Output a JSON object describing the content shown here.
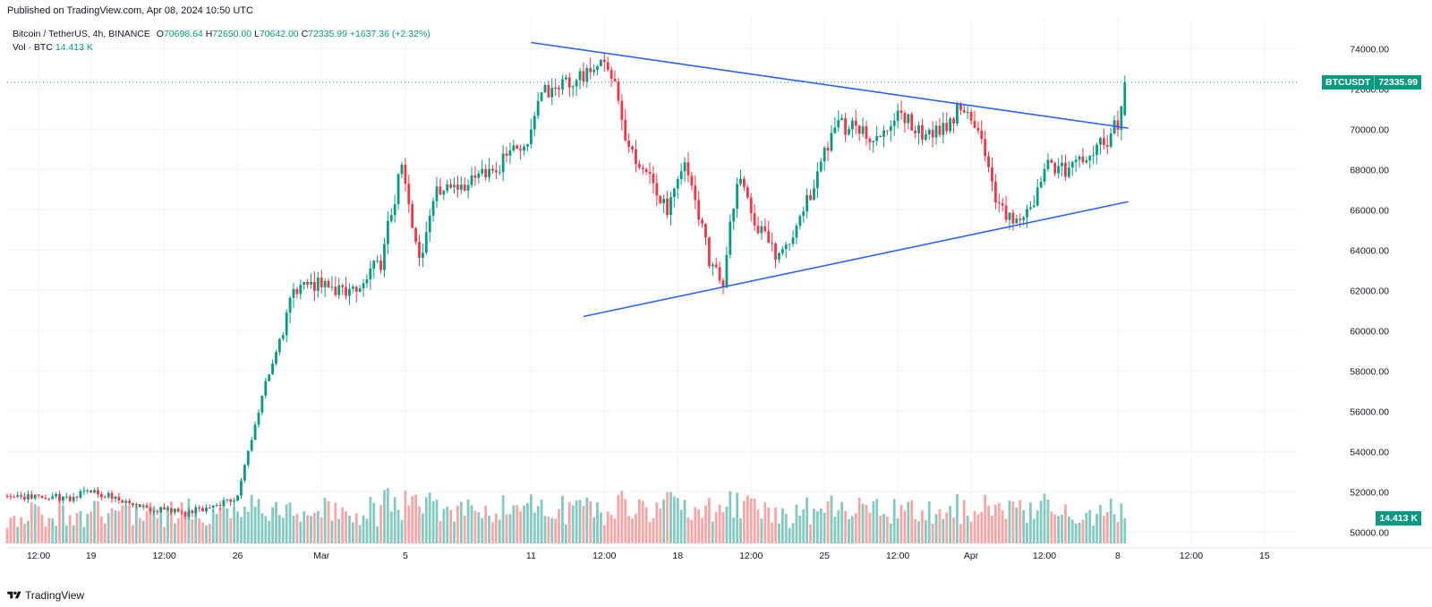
{
  "header": {
    "published": "Published on TradingView.com, Apr 08, 2024 10:50 UTC"
  },
  "legend": {
    "symbol": "Bitcoin / TetherUS, 4h, BINANCE",
    "o_label": "O",
    "o": "70698.64",
    "h_label": "H",
    "h": "72650.00",
    "l_label": "L",
    "l": "70642.00",
    "c_label": "C",
    "c": "72335.99",
    "change": "+1637.36 (+2.32%)",
    "vol_label": "Vol · BTC",
    "vol": "14.413 K"
  },
  "labels": {
    "symbol_tag": "BTCUSDT",
    "last_price": "72335.99",
    "last_volume": "14.413 K"
  },
  "footer": {
    "brand": "TradingView"
  },
  "colors": {
    "up": "#089981",
    "down": "#f23645",
    "up_vol": "#86c9c0",
    "down_vol": "#f7a6a7",
    "trendline": "#2962ff",
    "grid": "#f0f3fa",
    "axis_text": "#131722"
  },
  "chart_data": {
    "type": "candlestick",
    "title": "Bitcoin / TetherUS, 4h, BINANCE",
    "interval": "4h",
    "y_ticks": [
      50000,
      52000,
      54000,
      56000,
      58000,
      60000,
      62000,
      64000,
      66000,
      68000,
      70000,
      72000,
      74000
    ],
    "y_tick_labels": [
      "50000.00",
      "52000.00",
      "54000.00",
      "56000.00",
      "58000.00",
      "60000.00",
      "62000.00",
      "64000.00",
      "66000.00",
      "68000.00",
      "70000.00",
      "72000.00",
      "74000.00"
    ],
    "ylim": [
      49300,
      75300
    ],
    "x_tick_labels": [
      {
        "label": "12:00",
        "date": "2024-02-16T12:00"
      },
      {
        "label": "19",
        "date": "2024-02-19T00:00"
      },
      {
        "label": "12:00",
        "date": "2024-02-22T12:00"
      },
      {
        "label": "26",
        "date": "2024-02-26T00:00"
      },
      {
        "label": "Mar",
        "date": "2024-03-01T00:00"
      },
      {
        "label": "5",
        "date": "2024-03-05T00:00"
      },
      {
        "label": "11",
        "date": "2024-03-11T00:00"
      },
      {
        "label": "12:00",
        "date": "2024-03-14T12:00"
      },
      {
        "label": "18",
        "date": "2024-03-18T00:00"
      },
      {
        "label": "12:00",
        "date": "2024-03-21T12:00"
      },
      {
        "label": "25",
        "date": "2024-03-25T00:00"
      },
      {
        "label": "12:00",
        "date": "2024-03-28T12:00"
      },
      {
        "label": "Apr",
        "date": "2024-04-01T00:00"
      },
      {
        "label": "12:00",
        "date": "2024-04-04T12:00"
      },
      {
        "label": "8",
        "date": "2024-04-08T00:00"
      },
      {
        "label": "12:00",
        "date": "2024-04-11T12:00"
      },
      {
        "label": "15",
        "date": "2024-04-15T00:00"
      }
    ],
    "xlim": [
      "2024-02-15T00:00",
      "2024-04-16T12:00"
    ],
    "key_points": [
      {
        "date": "2024-02-15T00:00",
        "close": 51800
      },
      {
        "date": "2024-02-18T00:00",
        "close": 51700
      },
      {
        "date": "2024-02-19T00:00",
        "close": 52100
      },
      {
        "date": "2024-02-21T00:00",
        "close": 51300
      },
      {
        "date": "2024-02-23T12:00",
        "close": 50900
      },
      {
        "date": "2024-02-26T00:00",
        "close": 51700
      },
      {
        "date": "2024-02-27T04:00",
        "close": 56800
      },
      {
        "date": "2024-02-28T16:00",
        "close": 61900
      },
      {
        "date": "2024-02-29T08:00",
        "close": 62500
      },
      {
        "date": "2024-03-02T08:00",
        "close": 61700
      },
      {
        "date": "2024-03-03T20:00",
        "close": 63400
      },
      {
        "date": "2024-03-04T20:00",
        "close": 68300
      },
      {
        "date": "2024-03-05T16:00",
        "close": 63400
      },
      {
        "date": "2024-03-06T08:00",
        "close": 66800
      },
      {
        "date": "2024-03-08T00:00",
        "close": 67300
      },
      {
        "date": "2024-03-09T12:00",
        "close": 68300
      },
      {
        "date": "2024-03-10T16:00",
        "close": 69200
      },
      {
        "date": "2024-03-11T16:00",
        "close": 71900
      },
      {
        "date": "2024-03-13T12:00",
        "close": 72500
      },
      {
        "date": "2024-03-14T08:00",
        "close": 73300
      },
      {
        "date": "2024-03-14T20:00",
        "close": 72800
      },
      {
        "date": "2024-03-15T12:00",
        "close": 69300
      },
      {
        "date": "2024-03-16T16:00",
        "close": 67900
      },
      {
        "date": "2024-03-17T12:00",
        "close": 65700
      },
      {
        "date": "2024-03-18T08:00",
        "close": 68300
      },
      {
        "date": "2024-03-19T12:00",
        "close": 63500
      },
      {
        "date": "2024-03-20T04:00",
        "close": 62300
      },
      {
        "date": "2024-03-20T20:00",
        "close": 67700
      },
      {
        "date": "2024-03-21T16:00",
        "close": 65500
      },
      {
        "date": "2024-03-22T16:00",
        "close": 63700
      },
      {
        "date": "2024-03-23T12:00",
        "close": 64300
      },
      {
        "date": "2024-03-24T12:00",
        "close": 67300
      },
      {
        "date": "2024-03-25T12:00",
        "close": 70200
      },
      {
        "date": "2024-03-26T12:00",
        "close": 70000
      },
      {
        "date": "2024-03-27T12:00",
        "close": 69300
      },
      {
        "date": "2024-03-28T12:00",
        "close": 70800
      },
      {
        "date": "2024-03-29T12:00",
        "close": 69900
      },
      {
        "date": "2024-03-30T12:00",
        "close": 69700
      },
      {
        "date": "2024-03-31T12:00",
        "close": 71200
      },
      {
        "date": "2024-04-01T08:00",
        "close": 69700
      },
      {
        "date": "2024-04-02T08:00",
        "close": 66000
      },
      {
        "date": "2024-04-03T00:00",
        "close": 65600
      },
      {
        "date": "2024-04-04T00:00",
        "close": 66500
      },
      {
        "date": "2024-04-04T16:00",
        "close": 68500
      },
      {
        "date": "2024-04-05T12:00",
        "close": 67800
      },
      {
        "date": "2024-04-06T12:00",
        "close": 68700
      },
      {
        "date": "2024-04-07T12:00",
        "close": 69400
      },
      {
        "date": "2024-04-08T04:00",
        "close": 70700
      },
      {
        "date": "2024-04-08T08:00",
        "close": 72336
      }
    ],
    "last_bar": {
      "open": 70698.64,
      "high": 72650.0,
      "low": 70642.0,
      "close": 72335.99,
      "volume": "14.413 K"
    },
    "trendlines": [
      {
        "name": "upper",
        "from": {
          "date": "2024-03-11T00:00",
          "price": 74300
        },
        "to": {
          "date": "2024-04-08T12:00",
          "price": 70050
        }
      },
      {
        "name": "lower",
        "from": {
          "date": "2024-03-13T12:00",
          "price": 60700
        },
        "to": {
          "date": "2024-04-08T12:00",
          "price": 66400
        }
      }
    ],
    "volume_series": {
      "name": "Vol · BTC",
      "last": "14.413 K"
    },
    "grid": true,
    "last_price_line": 72335.99
  }
}
